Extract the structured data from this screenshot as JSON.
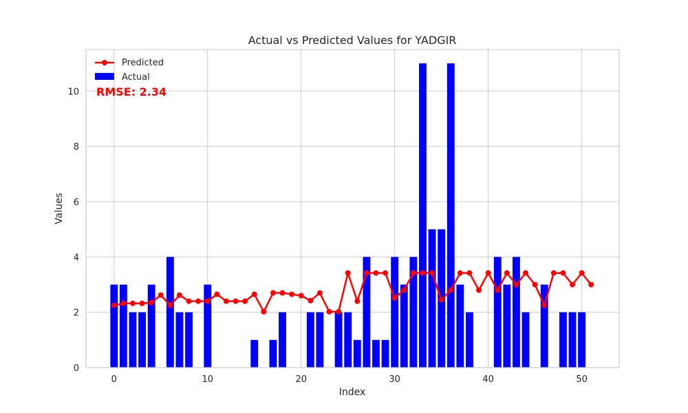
{
  "chart_data": {
    "type": "bar+line",
    "title": "Actual vs Predicted Values for YADGIR",
    "xlabel": "Index",
    "ylabel": "Values",
    "xlim": [
      -3,
      54
    ],
    "ylim": [
      0,
      11.5
    ],
    "xticks": [
      0,
      10,
      20,
      30,
      40,
      50
    ],
    "yticks": [
      0,
      2,
      4,
      6,
      8,
      10
    ],
    "grid": true,
    "legend_position": "top-left",
    "annotation": "RMSE: 2.34",
    "colors": {
      "actual": "#0000ff",
      "predicted": "#ff0000",
      "annotation": "#ff0000",
      "grid": "#cccccc"
    },
    "x": [
      0,
      1,
      2,
      3,
      4,
      5,
      6,
      7,
      8,
      9,
      10,
      11,
      12,
      13,
      14,
      15,
      16,
      17,
      18,
      19,
      20,
      21,
      22,
      23,
      24,
      25,
      26,
      27,
      28,
      29,
      30,
      31,
      32,
      33,
      34,
      35,
      36,
      37,
      38,
      39,
      40,
      41,
      42,
      43,
      44,
      45,
      46,
      47,
      48,
      49,
      50,
      51
    ],
    "series": [
      {
        "name": "Actual",
        "kind": "bar",
        "values": [
          3,
          3,
          2,
          2,
          3,
          0,
          4,
          2,
          2,
          0,
          3,
          0,
          0,
          0,
          0,
          1,
          0,
          1,
          2,
          0,
          0,
          2,
          2,
          0,
          2,
          2,
          1,
          4,
          1,
          1,
          4,
          3,
          4,
          11,
          5,
          5,
          11,
          3,
          2,
          0,
          0,
          4,
          3,
          4,
          2,
          0,
          3,
          0,
          2,
          2,
          2,
          0
        ]
      },
      {
        "name": "Predicted",
        "kind": "line",
        "values": [
          2.25,
          2.32,
          2.32,
          2.32,
          2.35,
          2.62,
          2.25,
          2.62,
          2.4,
          2.4,
          2.4,
          2.65,
          2.4,
          2.4,
          2.4,
          2.65,
          2.02,
          2.7,
          2.7,
          2.65,
          2.6,
          2.42,
          2.7,
          2.02,
          2.02,
          3.42,
          2.4,
          3.42,
          3.42,
          3.42,
          2.52,
          2.8,
          3.42,
          3.42,
          3.42,
          2.45,
          2.8,
          3.42,
          3.42,
          2.8,
          3.42,
          2.8,
          3.42,
          3.0,
          3.42,
          3.0,
          2.25,
          3.42,
          3.42,
          3.0,
          3.42,
          3.0
        ]
      }
    ]
  }
}
